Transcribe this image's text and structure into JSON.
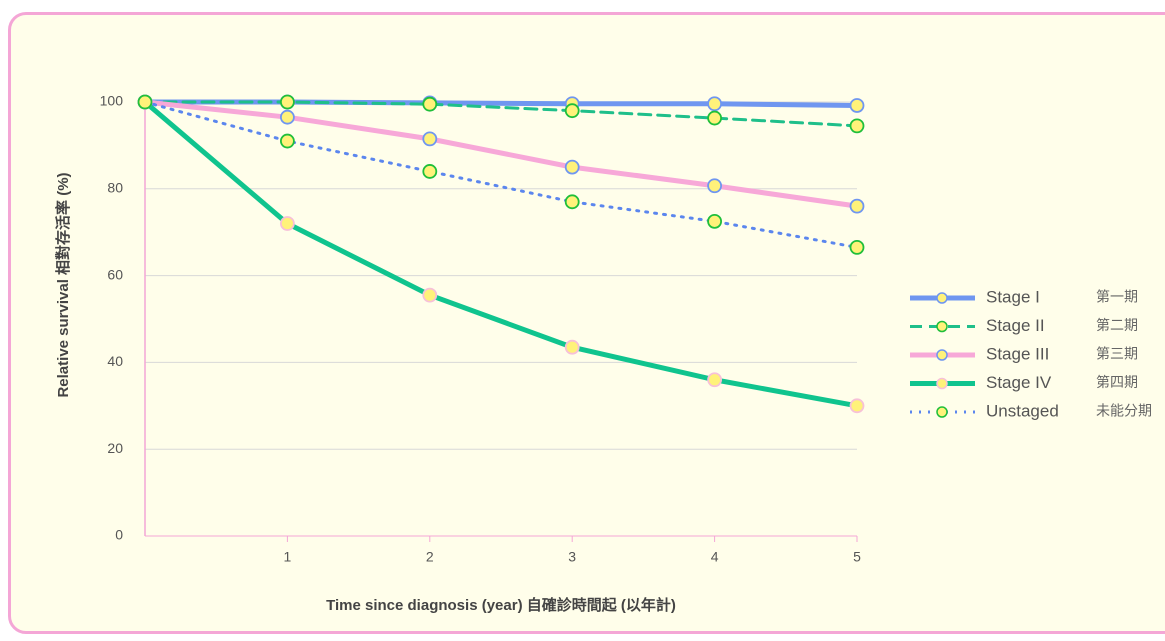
{
  "chart_data": {
    "type": "line",
    "x_label": "Time since diagnosis (year) 自確診時間起 (以年計)",
    "y_label": "Relative survival 相對存活率 (%)",
    "x": [
      0,
      1,
      2,
      3,
      4,
      5
    ],
    "xlim": [
      0,
      5
    ],
    "xticks": [
      1,
      2,
      3,
      4,
      5
    ],
    "ylim": [
      0,
      100
    ],
    "yticks": [
      0,
      20,
      40,
      60,
      80,
      100
    ],
    "grid": true,
    "legend": "right",
    "series": [
      {
        "name": "Stage I",
        "name_zh": "第一期",
        "color": "#6f96f0",
        "dash": "solid",
        "marker_stroke": "#6f96f0",
        "values": [
          100,
          100,
          99.8,
          99.6,
          99.6,
          99.2
        ]
      },
      {
        "name": "Stage II",
        "name_zh": "第二期",
        "color": "#1fbf8a",
        "dash": "dashed",
        "marker_stroke": "#1fbf3a",
        "values": [
          100,
          100,
          99.5,
          98,
          96.3,
          94.5
        ]
      },
      {
        "name": "Stage III",
        "name_zh": "第三期",
        "color": "#f7a8d8",
        "dash": "solid",
        "marker_stroke": "#6f96f0",
        "values": [
          100,
          96.5,
          91.5,
          85,
          80.7,
          76
        ]
      },
      {
        "name": "Stage IV",
        "name_zh": "第四期",
        "color": "#10c48e",
        "dash": "solid",
        "marker_stroke": "#f7c0d8",
        "values": [
          100,
          72,
          55.5,
          43.5,
          36,
          30
        ]
      },
      {
        "name": "Unstaged",
        "name_zh": "未能分期",
        "color": "#5b86ee",
        "dash": "dotted",
        "marker_stroke": "#1fbf3a",
        "values": [
          100,
          91,
          84,
          77,
          72.5,
          66.5
        ]
      }
    ]
  }
}
